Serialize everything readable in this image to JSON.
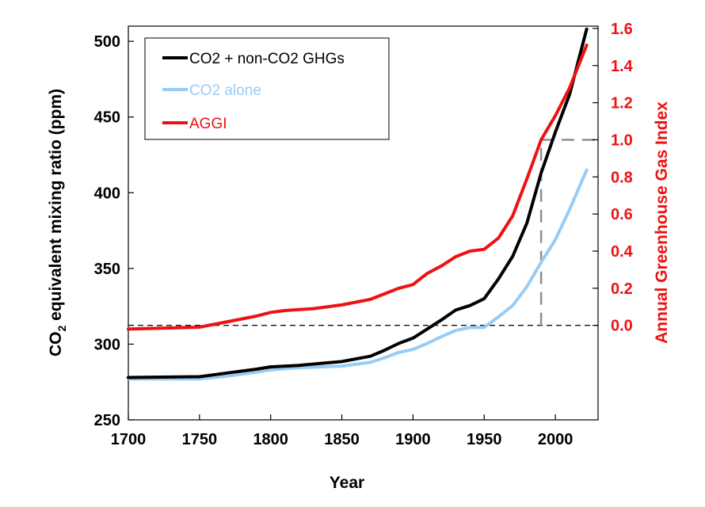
{
  "chart_data": {
    "type": "line",
    "xlabel": "Year",
    "ylabel_left": {
      "main": "CO",
      "sub": "2",
      "rest": " equivalent mixing ratio (ppm)"
    },
    "ylabel_right": "Annual Greenhouse Gas Index",
    "xlim": [
      1700,
      2030
    ],
    "ylim_left": [
      250,
      510
    ],
    "ylim_right": [
      -0.5093,
      1.6125
    ],
    "x_ticks": [
      1700,
      1750,
      1800,
      1850,
      1900,
      1950,
      2000
    ],
    "y_ticks_left": [
      250,
      300,
      350,
      400,
      450,
      500
    ],
    "y_ticks_right": [
      "0.0",
      "0.2",
      "0.4",
      "0.6",
      "0.8",
      "1.0",
      "1.2",
      "1.4",
      "1.6"
    ],
    "reference_lines": {
      "aggi_zero_value": 0.0,
      "aggi_one_value": 1.0,
      "reference_year": 1990
    },
    "legend": {
      "position": "top-left",
      "entries": [
        {
          "label": "CO2 + non-CO2 GHGs",
          "color": "#000000"
        },
        {
          "label": "CO2 alone",
          "color": "#99ccf5"
        },
        {
          "label": "AGGI",
          "color": "#ee1111"
        }
      ]
    },
    "series": [
      {
        "name": "CO2 + non-CO2 GHGs",
        "axis": "left",
        "color": "#000000",
        "x": [
          1700,
          1750,
          1770,
          1790,
          1800,
          1820,
          1850,
          1870,
          1880,
          1890,
          1900,
          1910,
          1920,
          1930,
          1940,
          1950,
          1960,
          1970,
          1980,
          1990,
          2000,
          2010,
          2022
        ],
        "y": [
          278,
          278.5,
          281,
          283.5,
          285,
          286,
          288.5,
          292,
          296,
          300.5,
          304,
          310,
          316,
          322.5,
          325.5,
          330,
          343,
          358,
          380,
          413,
          440,
          465,
          508
        ]
      },
      {
        "name": "CO2 alone",
        "axis": "left",
        "color": "#99ccf5",
        "x": [
          1700,
          1750,
          1770,
          1790,
          1800,
          1820,
          1850,
          1870,
          1880,
          1890,
          1900,
          1910,
          1920,
          1930,
          1940,
          1950,
          1960,
          1970,
          1980,
          1990,
          2000,
          2010,
          2022
        ],
        "y": [
          277,
          277,
          279,
          281.5,
          283,
          284.5,
          285.5,
          288,
          291,
          294.5,
          296.5,
          300.5,
          305,
          309,
          311,
          311,
          318,
          325.5,
          338,
          354,
          369,
          389,
          415
        ]
      },
      {
        "name": "AGGI",
        "axis": "right",
        "color": "#ee1111",
        "x": [
          1700,
          1750,
          1770,
          1790,
          1800,
          1810,
          1830,
          1850,
          1870,
          1880,
          1890,
          1900,
          1910,
          1920,
          1930,
          1940,
          1950,
          1960,
          1970,
          1980,
          1990,
          2000,
          2010,
          2022
        ],
        "y": [
          -0.02,
          -0.01,
          0.02,
          0.05,
          0.07,
          0.08,
          0.09,
          0.11,
          0.14,
          0.17,
          0.2,
          0.22,
          0.28,
          0.32,
          0.37,
          0.4,
          0.41,
          0.47,
          0.59,
          0.79,
          1.0,
          1.13,
          1.28,
          1.51
        ]
      }
    ]
  }
}
